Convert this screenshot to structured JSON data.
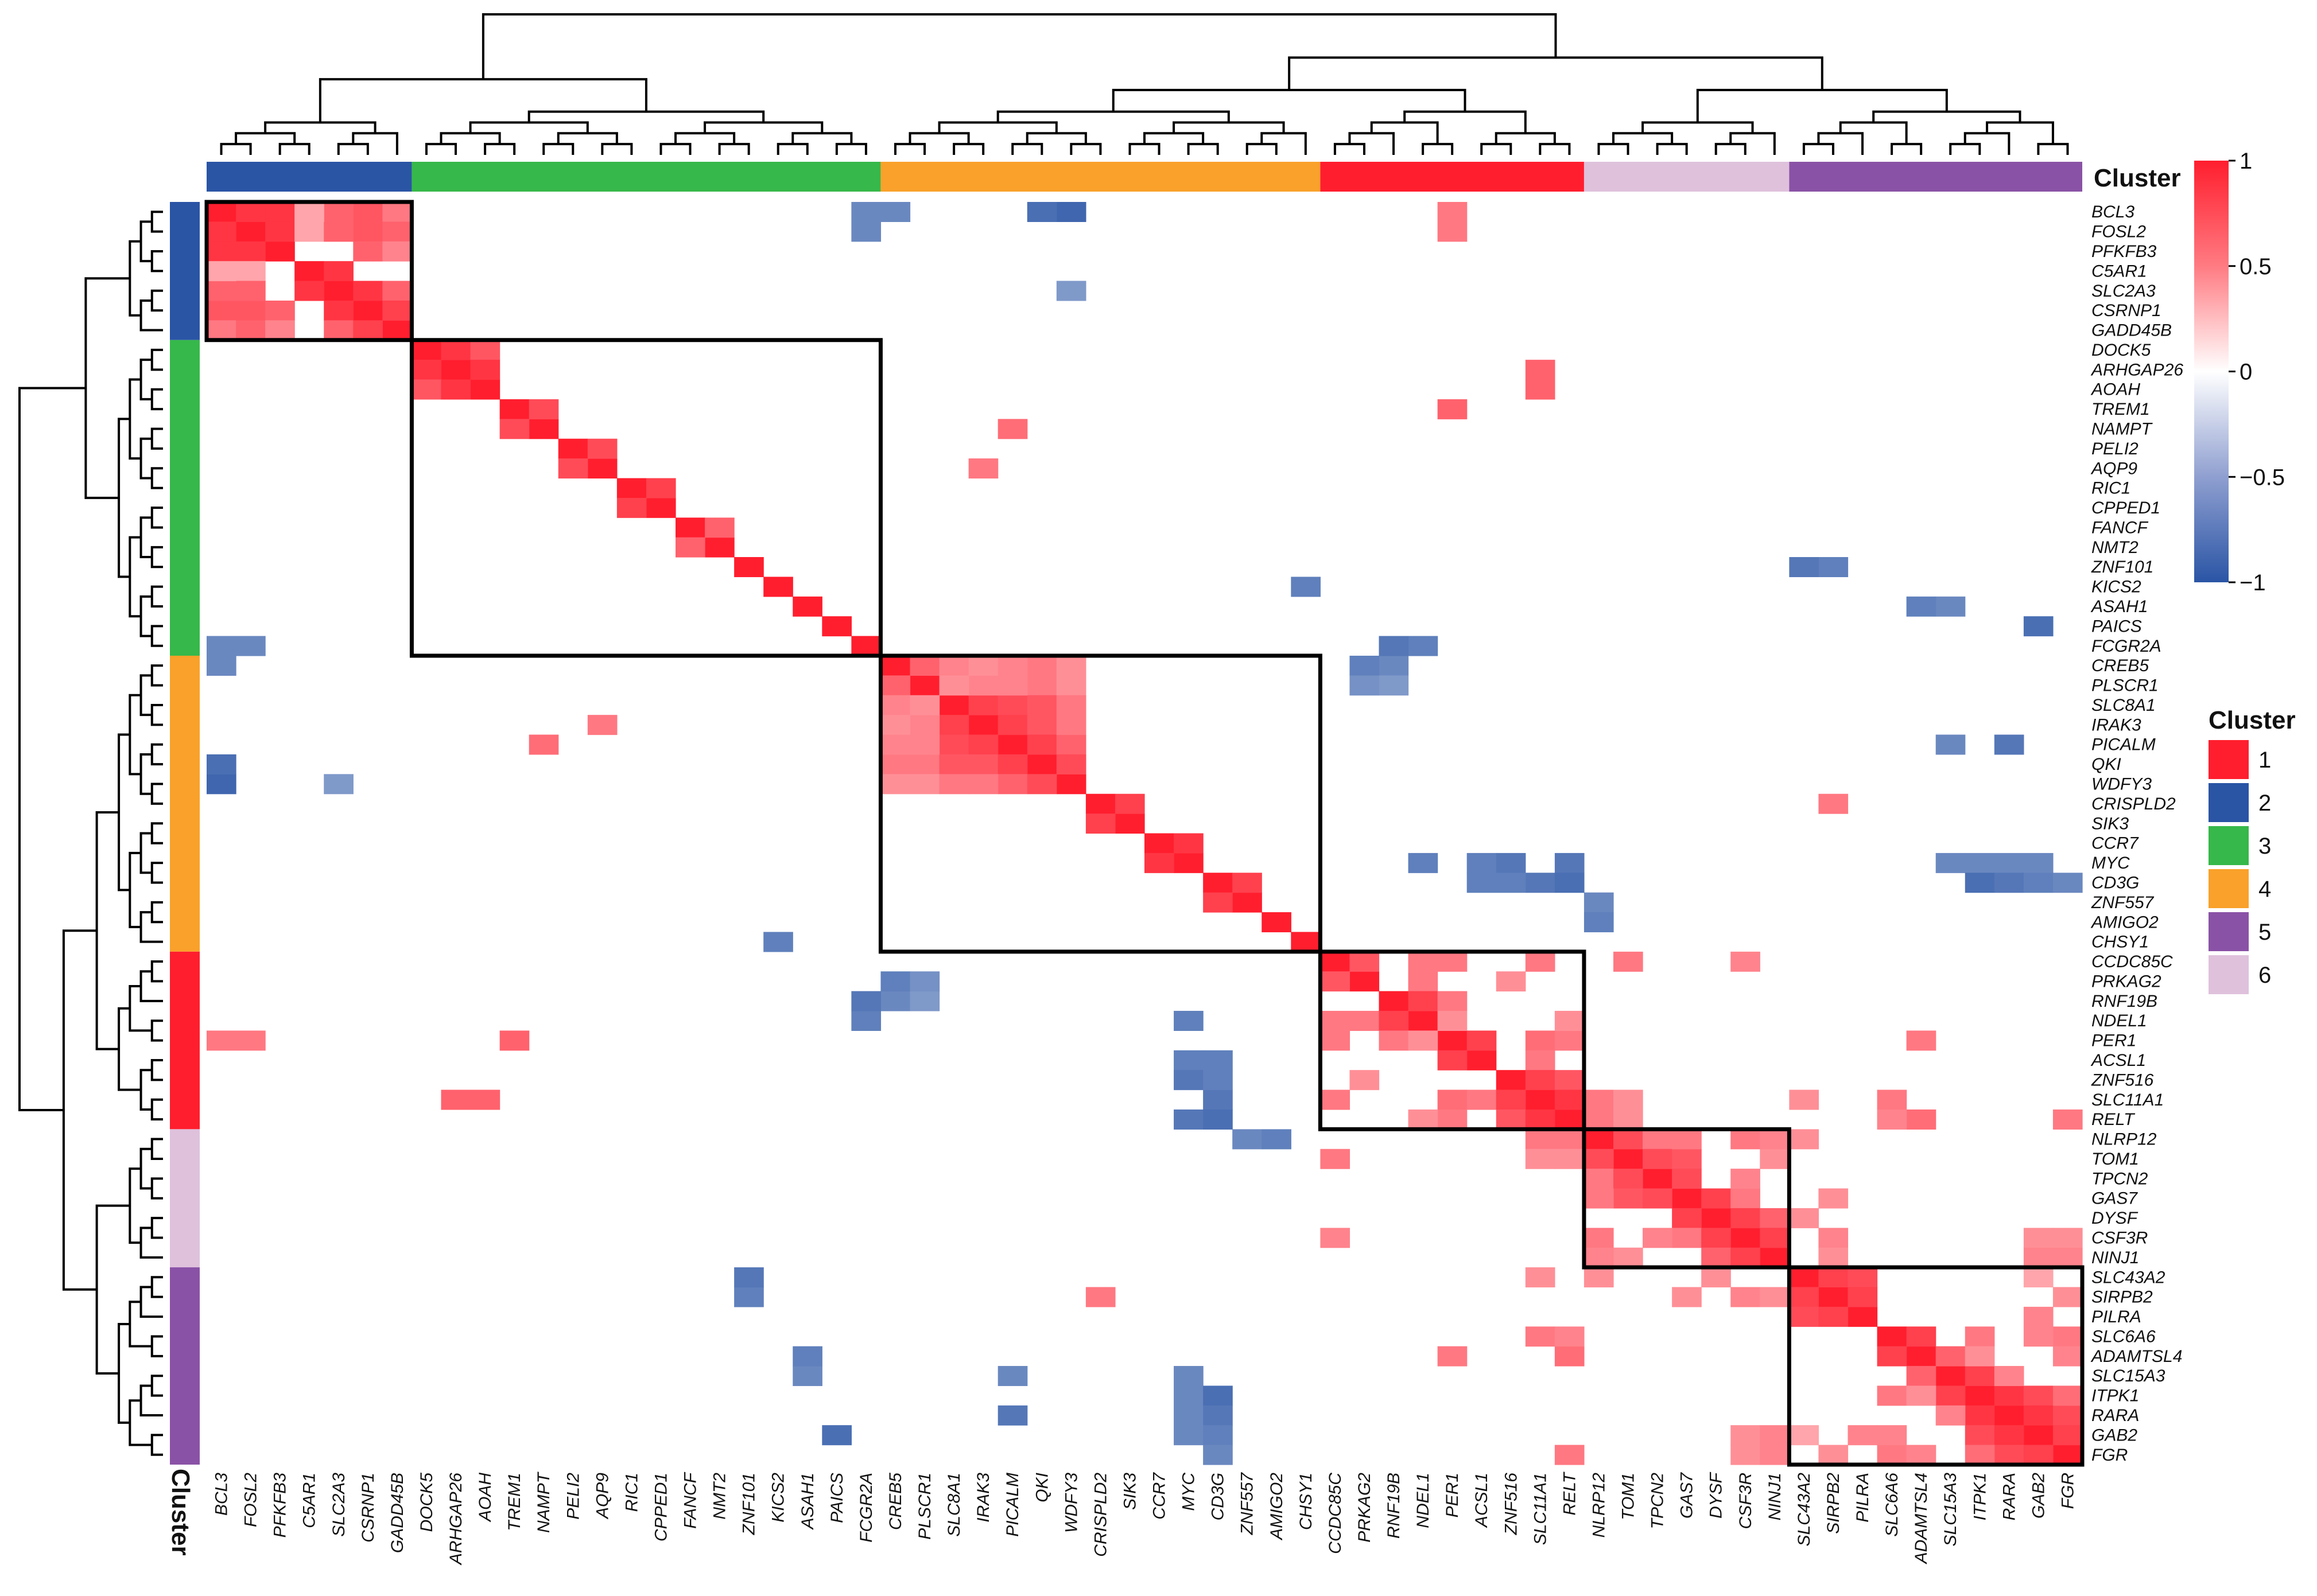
{
  "chart_data": {
    "type": "heatmap",
    "genes": [
      "BCL3",
      "FOSL2",
      "PFKFB3",
      "C5AR1",
      "SLC2A3",
      "CSRNP1",
      "GADD45B",
      "DOCK5",
      "ARHGAP26",
      "AOAH",
      "TREM1",
      "NAMPT",
      "PELI2",
      "AQP9",
      "RIC1",
      "CPPED1",
      "FANCF",
      "NMT2",
      "ZNF101",
      "KICS2",
      "ASAH1",
      "PAICS",
      "FCGR2A",
      "CREB5",
      "PLSCR1",
      "SLC8A1",
      "IRAK3",
      "PICALM",
      "QKI",
      "WDFY3",
      "CRISPLD2",
      "SIK3",
      "CCR7",
      "MYC",
      "CD3G",
      "ZNF557",
      "AMIGO2",
      "CHSY1",
      "CCDC85C",
      "PRKAG2",
      "RNF19B",
      "NDEL1",
      "PER1",
      "ACSL1",
      "ZNF516",
      "SLC11A1",
      "RELT",
      "NLRP12",
      "TOM1",
      "TPCN2",
      "GAS7",
      "DYSF",
      "CSF3R",
      "NINJ1",
      "SLC43A2",
      "SIRPB2",
      "PILRA",
      "SLC6A6",
      "ADAMTSL4",
      "SLC15A3",
      "ITPK1",
      "RARA",
      "GAB2",
      "FGR"
    ],
    "gene_cluster": [
      2,
      2,
      2,
      2,
      2,
      2,
      2,
      3,
      3,
      3,
      3,
      3,
      3,
      3,
      3,
      3,
      3,
      3,
      3,
      3,
      3,
      3,
      3,
      4,
      4,
      4,
      4,
      4,
      4,
      4,
      4,
      4,
      4,
      4,
      4,
      4,
      4,
      4,
      1,
      1,
      1,
      1,
      1,
      1,
      1,
      1,
      1,
      6,
      6,
      6,
      6,
      6,
      6,
      6,
      5,
      5,
      5,
      5,
      5,
      5,
      5,
      5,
      5,
      5
    ],
    "cluster_order": [
      2,
      3,
      4,
      1,
      6,
      5
    ],
    "positive_cells": [
      [
        0,
        1,
        0.9
      ],
      [
        0,
        2,
        0.9
      ],
      [
        0,
        5,
        0.75
      ],
      [
        0,
        6,
        0.6
      ],
      [
        1,
        2,
        0.9
      ],
      [
        1,
        5,
        0.75
      ],
      [
        1,
        6,
        0.7
      ],
      [
        2,
        5,
        0.7
      ],
      [
        2,
        6,
        0.55
      ],
      [
        3,
        4,
        0.9
      ],
      [
        4,
        5,
        0.9
      ],
      [
        4,
        6,
        0.7
      ],
      [
        5,
        6,
        0.85
      ],
      [
        0,
        42,
        0.6
      ],
      [
        1,
        42,
        0.6
      ],
      [
        1,
        3,
        0.4
      ],
      [
        1,
        4,
        0.7
      ],
      [
        0,
        4,
        0.7
      ],
      [
        0,
        3,
        0.4
      ],
      [
        7,
        8,
        0.9
      ],
      [
        7,
        9,
        0.75
      ],
      [
        8,
        9,
        0.9
      ],
      [
        10,
        11,
        0.8
      ],
      [
        12,
        13,
        0.8
      ],
      [
        14,
        15,
        0.85
      ],
      [
        16,
        17,
        0.7
      ],
      [
        8,
        45,
        0.7
      ],
      [
        9,
        45,
        0.7
      ],
      [
        10,
        42,
        0.7
      ],
      [
        11,
        27,
        0.65
      ],
      [
        23,
        24,
        0.7
      ],
      [
        23,
        28,
        0.6
      ],
      [
        24,
        28,
        0.6
      ],
      [
        25,
        26,
        0.85
      ],
      [
        25,
        27,
        0.8
      ],
      [
        25,
        28,
        0.75
      ],
      [
        26,
        27,
        0.85
      ],
      [
        26,
        28,
        0.75
      ],
      [
        27,
        28,
        0.85
      ],
      [
        27,
        29,
        0.7
      ],
      [
        28,
        29,
        0.8
      ],
      [
        23,
        25,
        0.55
      ],
      [
        24,
        26,
        0.55
      ],
      [
        23,
        26,
        0.5
      ],
      [
        24,
        25,
        0.5
      ],
      [
        23,
        27,
        0.55
      ],
      [
        24,
        27,
        0.55
      ],
      [
        23,
        29,
        0.5
      ],
      [
        24,
        29,
        0.5
      ],
      [
        25,
        29,
        0.6
      ],
      [
        26,
        29,
        0.6
      ],
      [
        30,
        31,
        0.85
      ],
      [
        32,
        33,
        0.9
      ],
      [
        34,
        35,
        0.85
      ],
      [
        13,
        26,
        0.6
      ],
      [
        30,
        55,
        0.6
      ],
      [
        38,
        39,
        0.75
      ],
      [
        38,
        41,
        0.6
      ],
      [
        38,
        42,
        0.6
      ],
      [
        38,
        45,
        0.6
      ],
      [
        39,
        41,
        0.6
      ],
      [
        40,
        41,
        0.85
      ],
      [
        40,
        42,
        0.6
      ],
      [
        41,
        42,
        0.5
      ],
      [
        42,
        43,
        0.85
      ],
      [
        42,
        45,
        0.65
      ],
      [
        43,
        45,
        0.6
      ],
      [
        44,
        45,
        0.85
      ],
      [
        44,
        46,
        0.75
      ],
      [
        45,
        46,
        0.9
      ],
      [
        38,
        48,
        0.6
      ],
      [
        42,
        46,
        0.6
      ],
      [
        39,
        44,
        0.5
      ],
      [
        45,
        47,
        0.6
      ],
      [
        46,
        47,
        0.6
      ],
      [
        45,
        48,
        0.5
      ],
      [
        46,
        48,
        0.5
      ],
      [
        47,
        48,
        0.8
      ],
      [
        47,
        49,
        0.6
      ],
      [
        48,
        49,
        0.8
      ],
      [
        48,
        50,
        0.75
      ],
      [
        49,
        50,
        0.8
      ],
      [
        47,
        50,
        0.6
      ],
      [
        50,
        51,
        0.85
      ],
      [
        50,
        52,
        0.6
      ],
      [
        51,
        52,
        0.85
      ],
      [
        51,
        53,
        0.7
      ],
      [
        52,
        53,
        0.85
      ],
      [
        47,
        52,
        0.6
      ],
      [
        49,
        52,
        0.55
      ],
      [
        48,
        53,
        0.5
      ],
      [
        47,
        53,
        0.55
      ],
      [
        52,
        55,
        0.55
      ],
      [
        47,
        54,
        0.5
      ],
      [
        52,
        62,
        0.5
      ],
      [
        52,
        63,
        0.5
      ],
      [
        53,
        62,
        0.55
      ],
      [
        53,
        63,
        0.55
      ],
      [
        51,
        54,
        0.5
      ],
      [
        41,
        46,
        0.5
      ],
      [
        46,
        58,
        0.65
      ],
      [
        46,
        63,
        0.6
      ],
      [
        38,
        52,
        0.55
      ],
      [
        42,
        58,
        0.6
      ],
      [
        54,
        55,
        0.85
      ],
      [
        54,
        56,
        0.8
      ],
      [
        55,
        56,
        0.85
      ],
      [
        57,
        58,
        0.85
      ],
      [
        57,
        60,
        0.6
      ],
      [
        57,
        63,
        0.6
      ],
      [
        58,
        59,
        0.7
      ],
      [
        59,
        60,
        0.85
      ],
      [
        60,
        61,
        0.9
      ],
      [
        60,
        62,
        0.8
      ],
      [
        61,
        62,
        0.9
      ],
      [
        61,
        63,
        0.8
      ],
      [
        62,
        63,
        0.85
      ],
      [
        60,
        63,
        0.65
      ],
      [
        59,
        61,
        0.55
      ],
      [
        58,
        60,
        0.5
      ],
      [
        55,
        63,
        0.5
      ],
      [
        54,
        62,
        0.4
      ],
      [
        56,
        62,
        0.55
      ],
      [
        57,
        62,
        0.55
      ],
      [
        58,
        63,
        0.55
      ],
      [
        45,
        57,
        0.6
      ],
      [
        46,
        57,
        0.55
      ],
      [
        45,
        54,
        0.5
      ],
      [
        53,
        55,
        0.5
      ],
      [
        50,
        55,
        0.5
      ]
    ],
    "negative_cells": [
      [
        0,
        23,
        -0.7
      ],
      [
        0,
        29,
        -0.9
      ],
      [
        4,
        29,
        -0.6
      ],
      [
        18,
        55,
        -0.75
      ],
      [
        19,
        37,
        -0.75
      ],
      [
        20,
        59,
        -0.7
      ],
      [
        21,
        62,
        -0.8
      ],
      [
        22,
        41,
        -0.75
      ],
      [
        23,
        40,
        -0.7
      ],
      [
        24,
        40,
        -0.6
      ],
      [
        28,
        0,
        -0.85
      ],
      [
        22,
        0,
        -0.7
      ],
      [
        22,
        1,
        -0.7
      ],
      [
        33,
        41,
        -0.75
      ],
      [
        33,
        43,
        -0.75
      ],
      [
        33,
        44,
        -0.8
      ],
      [
        33,
        46,
        -0.8
      ],
      [
        33,
        59,
        -0.7
      ],
      [
        33,
        60,
        -0.7
      ],
      [
        33,
        61,
        -0.7
      ],
      [
        33,
        62,
        -0.7
      ],
      [
        35,
        47,
        -0.7
      ],
      [
        37,
        19,
        -0.75
      ],
      [
        27,
        59,
        -0.7
      ],
      [
        39,
        23,
        -0.75
      ],
      [
        39,
        24,
        -0.65
      ],
      [
        40,
        22,
        -0.8
      ],
      [
        43,
        34,
        -0.75
      ],
      [
        45,
        34,
        -0.8
      ],
      [
        46,
        34,
        -0.85
      ],
      [
        44,
        34,
        -0.75
      ],
      [
        47,
        36,
        -0.75
      ],
      [
        54,
        18,
        -0.8
      ],
      [
        58,
        20,
        -0.75
      ],
      [
        60,
        34,
        -0.85
      ],
      [
        61,
        34,
        -0.8
      ],
      [
        62,
        34,
        -0.75
      ],
      [
        63,
        34,
        -0.7
      ],
      [
        61,
        27,
        -0.8
      ],
      [
        62,
        21,
        -0.85
      ]
    ],
    "value_range": [
      -1,
      1
    ],
    "colorbar_ticks": [
      "1",
      "0.5",
      "0",
      "−0.5",
      "−1"
    ],
    "colorbar_values": [
      1,
      0.5,
      0,
      -0.5,
      -1
    ],
    "legend": {
      "title": "Cluster",
      "items": [
        {
          "label": "1",
          "color": "#ff1e2e"
        },
        {
          "label": "2",
          "color": "#2a55a5"
        },
        {
          "label": "3",
          "color": "#36b84a"
        },
        {
          "label": "4",
          "color": "#f9a12a"
        },
        {
          "label": "5",
          "color": "#8a52a6"
        },
        {
          "label": "6",
          "color": "#dfc1dc"
        }
      ]
    },
    "annotation_label": "Cluster",
    "grid": false,
    "legend_placement": "right"
  }
}
